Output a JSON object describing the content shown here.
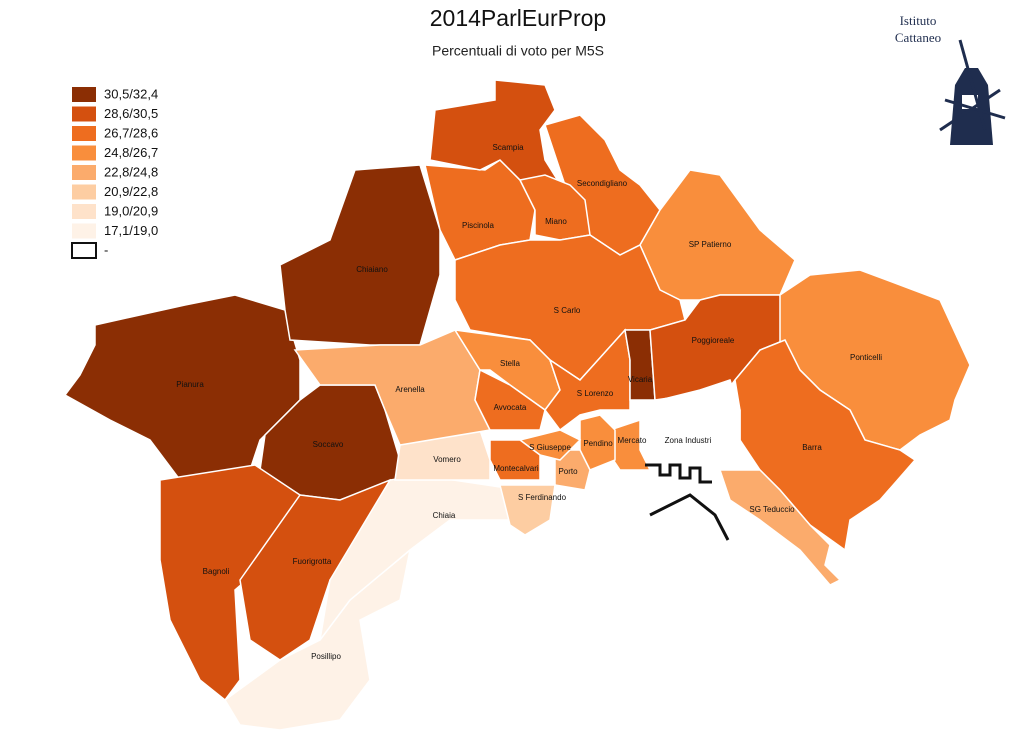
{
  "title": "2014ParlEurProp",
  "subtitle": "Percentuali di voto per M5S",
  "logo": [
    "Istituto",
    "Cattaneo"
  ],
  "legend": [
    {
      "label": "30,5/32,4",
      "color": "#8b2e04"
    },
    {
      "label": "28,6/30,5",
      "color": "#d4500f"
    },
    {
      "label": "26,7/28,6",
      "color": "#ee6d1f"
    },
    {
      "label": "24,8/26,7",
      "color": "#f98e3c"
    },
    {
      "label": "22,8/24,8",
      "color": "#fbab6c"
    },
    {
      "label": "20,9/22,8",
      "color": "#fdcda2"
    },
    {
      "label": "19,0/20,9",
      "color": "#fee2ca"
    },
    {
      "label": "17,1/19,0",
      "color": "#fef2e7"
    },
    {
      "label": "-",
      "color": "#ffffff"
    }
  ],
  "districts": [
    {
      "name": "Pianura",
      "color": "#8b2e04"
    },
    {
      "name": "Chiaiano",
      "color": "#8b2e04"
    },
    {
      "name": "Soccavo",
      "color": "#8b2e04"
    },
    {
      "name": "Bagnoli",
      "color": "#d4500f"
    },
    {
      "name": "Fuorigrotta",
      "color": "#d4500f"
    },
    {
      "name": "Posillipo",
      "color": "#fef2e7"
    },
    {
      "name": "Chiaia",
      "color": "#fef2e7"
    },
    {
      "name": "Vomero",
      "color": "#fee2ca"
    },
    {
      "name": "Arenella",
      "color": "#fbab6c"
    },
    {
      "name": "Piscinola",
      "color": "#ee6d1f"
    },
    {
      "name": "Scampia",
      "color": "#d4500f"
    },
    {
      "name": "Secondigliano",
      "color": "#ee6d1f"
    },
    {
      "name": "Miano",
      "color": "#ee6d1f"
    },
    {
      "name": "SP Patierno",
      "color": "#f98e3c"
    },
    {
      "name": "S Carlo",
      "color": "#ee6d1f"
    },
    {
      "name": "Stella",
      "color": "#f98e3c"
    },
    {
      "name": "Avvocata",
      "color": "#ee6d1f"
    },
    {
      "name": "S Lorenzo",
      "color": "#ee6d1f"
    },
    {
      "name": "Vicaria",
      "color": "#8b2e04"
    },
    {
      "name": "Poggioreale",
      "color": "#d4500f"
    },
    {
      "name": "Ponticelli",
      "color": "#f98e3c"
    },
    {
      "name": "Barra",
      "color": "#ee6d1f"
    },
    {
      "name": "SG Teduccio",
      "color": "#fbab6c"
    },
    {
      "name": "Zona Industri",
      "color": "#ffffff"
    },
    {
      "name": "Mercato",
      "color": "#f98e3c"
    },
    {
      "name": "Pendino",
      "color": "#f98e3c"
    },
    {
      "name": "Porto",
      "color": "#fbab6c"
    },
    {
      "name": "S Giuseppe",
      "color": "#f98e3c"
    },
    {
      "name": "Montecalvari",
      "color": "#ee6d1f"
    },
    {
      "name": "S Ferdinando",
      "color": "#fdcda2"
    }
  ]
}
